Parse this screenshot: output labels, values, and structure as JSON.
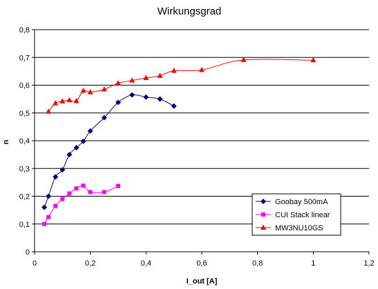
{
  "chart_data": {
    "type": "line",
    "title": "Wirkungsgrad",
    "xlabel": "I_out [A]",
    "ylabel": "n",
    "xlim": [
      0,
      1.2
    ],
    "ylim": [
      0,
      0.8
    ],
    "xticks": [
      "0",
      "0,2",
      "0,4",
      "0,6",
      "0,8",
      "1",
      "1,2"
    ],
    "yticks": [
      "0",
      "0,1",
      "0,2",
      "0,3",
      "0,4",
      "0,5",
      "0,6",
      "0,7",
      "0,8"
    ],
    "grid": "horizontal",
    "legend_position": "bottom-right",
    "series": [
      {
        "name": "Goobay 500mA",
        "color": "#000080",
        "marker": "diamond",
        "x": [
          0.035,
          0.05,
          0.075,
          0.1,
          0.125,
          0.15,
          0.175,
          0.2,
          0.25,
          0.3,
          0.35,
          0.4,
          0.45,
          0.5
        ],
        "y": [
          0.16,
          0.2,
          0.27,
          0.295,
          0.35,
          0.375,
          0.398,
          0.435,
          0.483,
          0.538,
          0.565,
          0.557,
          0.55,
          0.525
        ]
      },
      {
        "name": "CUI Stack linear",
        "color": "#ff00ff",
        "marker": "square",
        "x": [
          0.035,
          0.05,
          0.075,
          0.1,
          0.125,
          0.15,
          0.175,
          0.2,
          0.25,
          0.3
        ],
        "y": [
          0.1,
          0.125,
          0.165,
          0.19,
          0.21,
          0.228,
          0.238,
          0.215,
          0.215,
          0.237
        ]
      },
      {
        "name": "MW3NU10GS",
        "color": "#ff0000",
        "marker": "triangle",
        "x": [
          0.05,
          0.075,
          0.1,
          0.125,
          0.15,
          0.175,
          0.2,
          0.25,
          0.3,
          0.35,
          0.4,
          0.45,
          0.5,
          0.6,
          0.75,
          1.0
        ],
        "y": [
          0.505,
          0.535,
          0.542,
          0.546,
          0.543,
          0.58,
          0.575,
          0.585,
          0.607,
          0.617,
          0.626,
          0.634,
          0.652,
          0.655,
          0.691,
          0.69
        ]
      }
    ]
  }
}
